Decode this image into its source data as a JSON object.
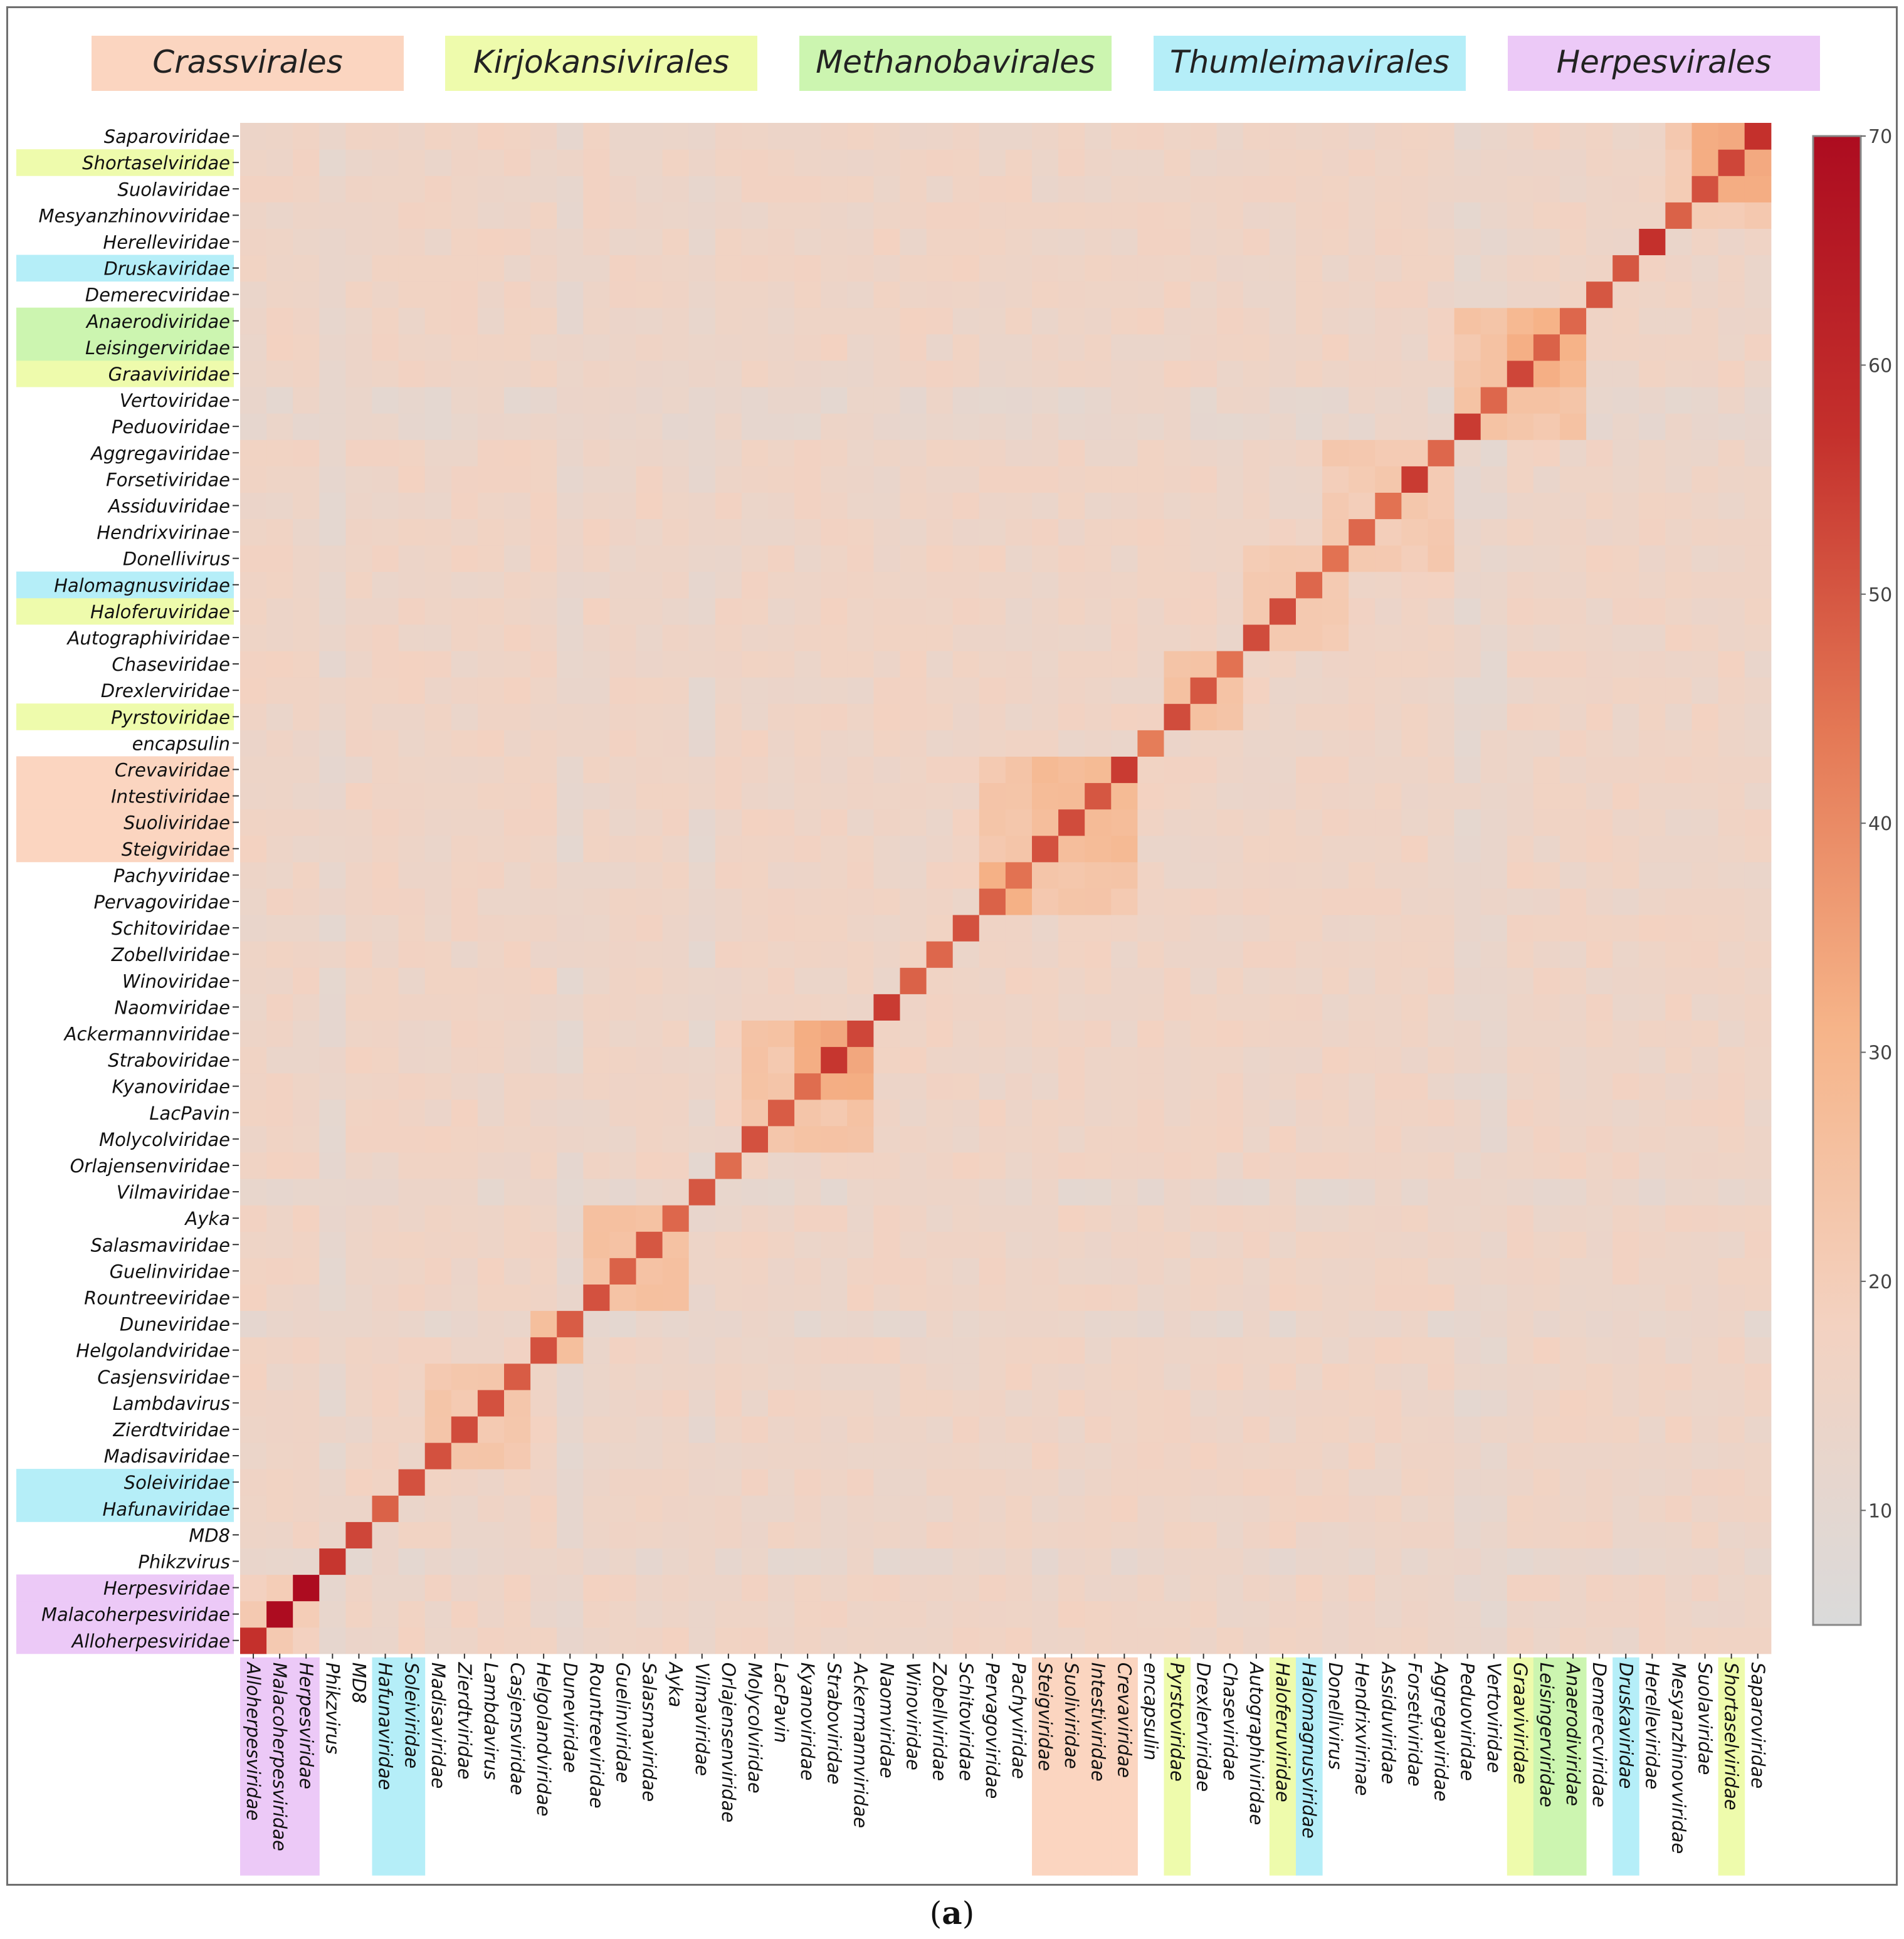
{
  "caption": {
    "open": "(",
    "letter": "a",
    "close": ")"
  },
  "legend": [
    {
      "label": "Crassvirales",
      "color": "#fbd5c0"
    },
    {
      "label": "Kirjokansivirales",
      "color": "#eefbac"
    },
    {
      "label": "Methanobavirales",
      "color": "#ccf5b0"
    },
    {
      "label": "Thumleimavirales",
      "color": "#b5eef8"
    },
    {
      "label": "Herpesvirales",
      "color": "#ecc9f7"
    }
  ],
  "chart_data": {
    "type": "heatmap",
    "title": "",
    "xlabel": "",
    "ylabel": "",
    "rows": [
      "Alloherpesviridae",
      "Malacoherpesviridae",
      "Herpesviridae",
      "Phikzvirus",
      "MD8",
      "Hafunaviridae",
      "Soleiviridae",
      "Madisaviridae",
      "Zierdtviridae",
      "Lambdavirus",
      "Casjensviridae",
      "Helgolandviridae",
      "Duneviridae",
      "Rountreeviridae",
      "Guelinviridae",
      "Salasmaviridae",
      "Ayka",
      "Vilmaviridae",
      "Orlajensenviridae",
      "Molycolviridae",
      "LacPavin",
      "Kyanoviridae",
      "Straboviridae",
      "Ackermannviridae",
      "Naomviridae",
      "Winoviridae",
      "Zobellviridae",
      "Schitoviridae",
      "Pervagoviridae",
      "Pachyviridae",
      "Steigviridae",
      "Suoliviridae",
      "Intestiviridae",
      "Crevaviridae",
      "encapsulin",
      "Pyrstoviridae",
      "Drexlerviridae",
      "Chaseviridae",
      "Autographiviridae",
      "Haloferuviridae",
      "Halomagnusviridae",
      "Donellivirus",
      "Hendrixvirinae",
      "Assiduviridae",
      "Forsetiviridae",
      "Aggregaviridae",
      "Peduoviridae",
      "Vertoviridae",
      "Graaviviridae",
      "Leisingerviridae",
      "Anaerodiviridae",
      "Demerecviridae",
      "Druskaviridae",
      "Herelleviridae",
      "Mesyanzhinovviridae",
      "Suolaviridae",
      "Shortaselviridae",
      "Saparoviridae"
    ],
    "row_order": "bottom-to-top (row 0 drawn at bottom); columns follow the same order left-to-right",
    "row_groups": {
      "Alloherpesviridae": "Herpesvirales",
      "Malacoherpesviridae": "Herpesvirales",
      "Herpesviridae": "Herpesvirales",
      "Hafunaviridae": "Thumleimavirales",
      "Soleiviridae": "Thumleimavirales",
      "Steigviridae": "Crassvirales",
      "Suoliviridae": "Crassvirales",
      "Intestiviridae": "Crassvirales",
      "Crevaviridae": "Crassvirales",
      "Pyrstoviridae": "Kirjokansivirales",
      "Haloferuviridae": "Kirjokansivirales",
      "Halomagnusviridae": "Thumleimavirales",
      "Graaviviridae": "Kirjokansivirales",
      "Leisingerviridae": "Methanobavirales",
      "Anaerodiviridae": "Methanobavirales",
      "Druskaviridae": "Thumleimavirales",
      "Shortaselviridae": "Kirjokansivirales"
    },
    "diagonal_values": [
      57,
      70,
      70,
      56,
      53,
      48,
      51,
      51,
      52,
      51,
      49,
      51,
      49,
      51,
      48,
      50,
      47,
      50,
      46,
      51,
      49,
      46,
      56,
      53,
      55,
      48,
      47,
      51,
      48,
      45,
      51,
      52,
      50,
      55,
      43,
      52,
      50,
      45,
      52,
      52,
      47,
      45,
      47,
      45,
      55,
      47,
      55,
      47,
      53,
      48,
      47,
      50,
      50,
      57,
      48,
      51,
      53,
      57
    ],
    "blocks": [
      {
        "rows": [
          0,
          2
        ],
        "cols": [
          0,
          2
        ],
        "value": 20
      },
      {
        "rows": [
          7,
          10
        ],
        "cols": [
          7,
          10
        ],
        "value": 22
      },
      {
        "rows": [
          11,
          12
        ],
        "cols": [
          11,
          12
        ],
        "value": 25
      },
      {
        "rows": [
          13,
          16
        ],
        "cols": [
          13,
          16
        ],
        "value": 24
      },
      {
        "rows": [
          19,
          23
        ],
        "cols": [
          19,
          23
        ],
        "value": 23
      },
      {
        "rows": [
          21,
          23
        ],
        "cols": [
          21,
          23
        ],
        "value": 32
      },
      {
        "rows": [
          28,
          33
        ],
        "cols": [
          28,
          33
        ],
        "value": 22
      },
      {
        "rows": [
          30,
          33
        ],
        "cols": [
          30,
          33
        ],
        "value": 27
      },
      {
        "rows": [
          28,
          29
        ],
        "cols": [
          28,
          29
        ],
        "value": 30
      },
      {
        "rows": [
          35,
          37
        ],
        "cols": [
          35,
          37
        ],
        "value": 24
      },
      {
        "rows": [
          46,
          50
        ],
        "cols": [
          46,
          50
        ],
        "value": 23
      },
      {
        "rows": [
          48,
          50
        ],
        "cols": [
          48,
          50
        ],
        "value": 30
      },
      {
        "rows": [
          41,
          45
        ],
        "cols": [
          41,
          45
        ],
        "value": 21
      },
      {
        "rows": [
          38,
          41
        ],
        "cols": [
          38,
          41
        ],
        "value": 20
      },
      {
        "rows": [
          54,
          57
        ],
        "cols": [
          54,
          57
        ],
        "value": 21
      },
      {
        "rows": [
          55,
          57
        ],
        "cols": [
          56,
          57
        ],
        "value": 33
      }
    ],
    "low_rows": [
      3,
      12,
      17,
      46,
      47
    ],
    "colorbar": {
      "range": [
        5,
        70
      ],
      "ticks": [
        10,
        20,
        30,
        40,
        50,
        60,
        70
      ],
      "colors": [
        "#dadada",
        "#f3d2c1",
        "#f6b489",
        "#e47855",
        "#c4302c",
        "#ad0c20"
      ]
    }
  }
}
